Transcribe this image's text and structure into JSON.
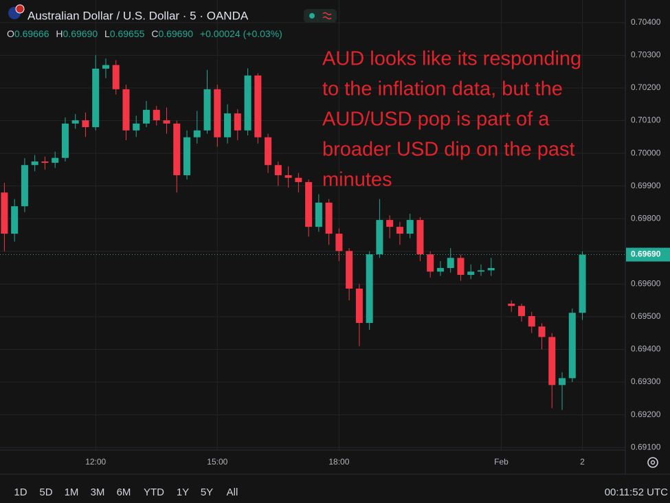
{
  "chart_data": {
    "type": "candlestick",
    "title": "Australian Dollar / U.S. Dollar · 5 · OANDA",
    "ohlc_header": {
      "labels": [
        "O",
        "H",
        "L",
        "C"
      ],
      "values": [
        "0.69666",
        "0.69690",
        "0.69655",
        "0.69690"
      ],
      "change": "+0.00024 (+0.03%)"
    },
    "annotation": [
      "AUD looks like its responding",
      "to the inflation data, but the",
      "AUD/USD pop is part of a",
      "broader USD dip on the past",
      "minutes"
    ],
    "last_price": {
      "value": 0.6969,
      "label": "0.69690"
    },
    "up_color": "#22ab94",
    "down_color": "#f23645",
    "grid": true,
    "x": [
      -27,
      -24,
      -21,
      -18,
      -15,
      -12,
      -9,
      -6,
      -3,
      0,
      3,
      6,
      9,
      12,
      15,
      18,
      21,
      24,
      27,
      30,
      33,
      36,
      39,
      42,
      45,
      48,
      51,
      54,
      57,
      60,
      63,
      66,
      69,
      72,
      75,
      78,
      81,
      84,
      87,
      90,
      93,
      96,
      99,
      102,
      105,
      108,
      111,
      114,
      117,
      123,
      126,
      129,
      132,
      135,
      138,
      141,
      144
    ],
    "open": [
      0.6988,
      0.69754,
      0.69838,
      0.69964,
      0.69975,
      0.69971,
      0.69986,
      0.70091,
      0.70101,
      0.7008,
      0.70259,
      0.7027,
      0.70196,
      0.7007,
      0.70091,
      0.70133,
      0.70101,
      0.70091,
      0.69933,
      0.70049,
      0.7007,
      0.70196,
      0.70049,
      0.70122,
      0.7007,
      0.70238,
      0.70049,
      0.69964,
      0.69933,
      0.69925,
      0.69912,
      0.69775,
      0.69849,
      0.69754,
      0.69701,
      0.69586,
      0.69481,
      0.69691,
      0.69796,
      0.69775,
      0.69754,
      0.69796,
      0.69691,
      0.69638,
      0.69649,
      0.6968,
      0.69628,
      0.69638,
      0.69642,
      0.6954,
      0.69533,
      0.69502,
      0.6947,
      0.69438,
      0.69291,
      0.69312,
      0.69512
    ],
    "high": [
      0.6991,
      0.6986,
      0.69985,
      0.69995,
      0.6999,
      0.70005,
      0.7011,
      0.7012,
      0.70125,
      0.703,
      0.7029,
      0.70285,
      0.7021,
      0.70115,
      0.7016,
      0.70145,
      0.7014,
      0.701,
      0.7007,
      0.7013,
      0.70255,
      0.7021,
      0.7015,
      0.70135,
      0.7026,
      0.70245,
      0.7006,
      0.69975,
      0.6996,
      0.6994,
      0.6992,
      0.69875,
      0.6986,
      0.6977,
      0.6971,
      0.696,
      0.697,
      0.6986,
      0.6981,
      0.6979,
      0.69815,
      0.69805,
      0.697,
      0.6967,
      0.6971,
      0.6969,
      0.6966,
      0.6966,
      0.6968,
      0.6955,
      0.6954,
      0.69515,
      0.6948,
      0.6945,
      0.6933,
      0.69525,
      0.697
    ],
    "low": [
      0.697,
      0.6973,
      0.6982,
      0.69945,
      0.6995,
      0.69955,
      0.69975,
      0.70075,
      0.7005,
      0.7007,
      0.7023,
      0.7018,
      0.7004,
      0.7005,
      0.7008,
      0.70085,
      0.7006,
      0.6988,
      0.6992,
      0.7003,
      0.7006,
      0.7002,
      0.7003,
      0.7004,
      0.70055,
      0.7003,
      0.6994,
      0.699,
      0.69895,
      0.6988,
      0.69745,
      0.6976,
      0.6972,
      0.6967,
      0.6955,
      0.6941,
      0.6946,
      0.6968,
      0.6974,
      0.6972,
      0.6974,
      0.6967,
      0.6962,
      0.69625,
      0.69635,
      0.6961,
      0.69615,
      0.69625,
      0.69625,
      0.69515,
      0.69485,
      0.6945,
      0.694,
      0.6922,
      0.69215,
      0.693,
      0.6949
    ],
    "close": [
      0.69754,
      0.69838,
      0.69964,
      0.69975,
      0.69971,
      0.69986,
      0.70091,
      0.70101,
      0.7008,
      0.70259,
      0.7027,
      0.70196,
      0.7007,
      0.70091,
      0.70133,
      0.70101,
      0.70091,
      0.69933,
      0.70049,
      0.7007,
      0.70196,
      0.70049,
      0.70122,
      0.7007,
      0.70238,
      0.70049,
      0.69964,
      0.69933,
      0.69925,
      0.69912,
      0.69775,
      0.69849,
      0.69754,
      0.69701,
      0.69586,
      0.69481,
      0.69691,
      0.69796,
      0.69775,
      0.69754,
      0.69796,
      0.69691,
      0.69638,
      0.69649,
      0.6968,
      0.69628,
      0.69638,
      0.69642,
      0.69649,
      0.69533,
      0.69502,
      0.6947,
      0.69438,
      0.69291,
      0.69312,
      0.69512,
      0.6969
    ],
    "xlim": [
      -28.3,
      156.7
    ],
    "xticks": [
      {
        "value": 0,
        "label": "12:00"
      },
      {
        "value": 36,
        "label": "15:00"
      },
      {
        "value": 72,
        "label": "18:00"
      },
      {
        "value": 120,
        "label": "Feb"
      },
      {
        "value": 144,
        "label": "2"
      }
    ],
    "ylim": [
      0.69092,
      0.70469
    ],
    "yticks": [
      {
        "value": 0.691,
        "label": "0.69100"
      },
      {
        "value": 0.692,
        "label": "0.69200"
      },
      {
        "value": 0.693,
        "label": "0.69300"
      },
      {
        "value": 0.694,
        "label": "0.69400"
      },
      {
        "value": 0.695,
        "label": "0.69500"
      },
      {
        "value": 0.696,
        "label": "0.69600"
      },
      {
        "value": 0.697,
        "label": "0.69700"
      },
      {
        "value": 0.698,
        "label": "0.69800"
      },
      {
        "value": 0.699,
        "label": "0.69900"
      },
      {
        "value": 0.7,
        "label": "0.70000"
      },
      {
        "value": 0.701,
        "label": "0.70100"
      },
      {
        "value": 0.702,
        "label": "0.70200"
      },
      {
        "value": 0.703,
        "label": "0.70300"
      },
      {
        "value": 0.704,
        "label": "0.70400"
      }
    ]
  },
  "toolbar": {
    "ranges": [
      "1D",
      "5D",
      "1M",
      "3M",
      "6M",
      "YTD",
      "1Y",
      "5Y",
      "All"
    ],
    "clock": "00:11:52 UTC"
  }
}
